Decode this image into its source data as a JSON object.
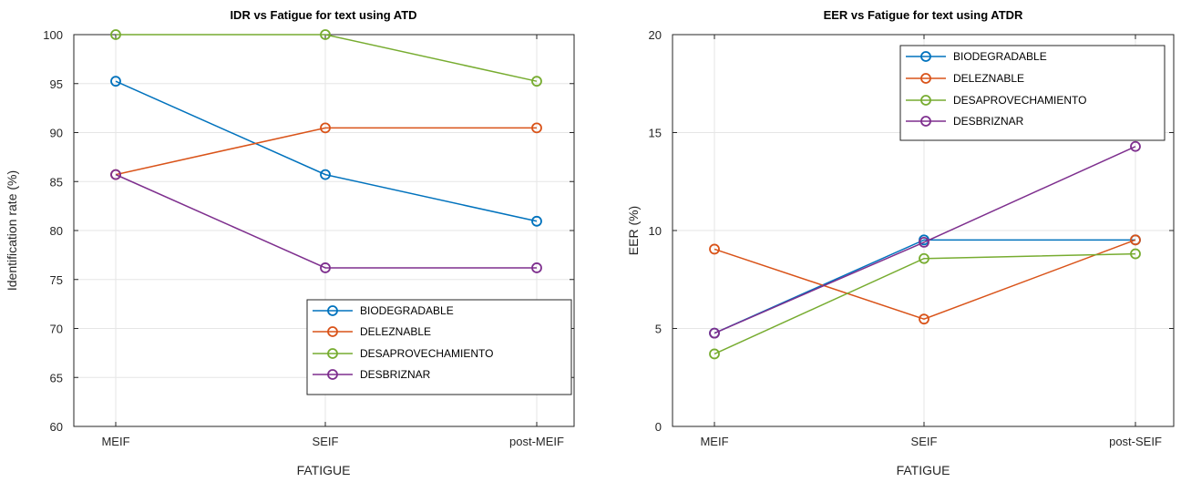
{
  "chart_data": [
    {
      "type": "line",
      "title": "IDR vs Fatigue for text using ATD",
      "xlabel": "FATIGUE",
      "ylabel": "Identification rate (%)",
      "categories": [
        "MEIF",
        "SEIF",
        "post-MEIF"
      ],
      "ylim": [
        60,
        100
      ],
      "yticks": [
        60,
        65,
        70,
        75,
        80,
        85,
        90,
        95,
        100
      ],
      "grid": true,
      "legend_position": "bottom-right",
      "series": [
        {
          "name": "BIODEGRADABLE",
          "color": "#0072BD",
          "values": [
            95.24,
            85.71,
            80.95
          ]
        },
        {
          "name": "DELEZNABLE",
          "color": "#D95319",
          "values": [
            85.71,
            90.48,
            90.48
          ]
        },
        {
          "name": "DESAPROVECHAMIENTO",
          "color": "#77AC30",
          "values": [
            100,
            100,
            95.24
          ]
        },
        {
          "name": "DESBRIZNAR",
          "color": "#7E2F8E",
          "values": [
            85.71,
            76.19,
            76.19
          ]
        }
      ]
    },
    {
      "type": "line",
      "title": "EER vs Fatigue for text using ATDR",
      "xlabel": "FATIGUE",
      "ylabel": "EER (%)",
      "categories": [
        "MEIF",
        "SEIF",
        "post-SEIF"
      ],
      "ylim": [
        0,
        20
      ],
      "yticks": [
        0,
        5,
        10,
        15,
        20
      ],
      "grid": true,
      "legend_position": "top-right",
      "series": [
        {
          "name": "BIODEGRADABLE",
          "color": "#0072BD",
          "values": [
            4.76,
            9.52,
            9.52
          ]
        },
        {
          "name": "DELEZNABLE",
          "color": "#D95319",
          "values": [
            9.05,
            5.48,
            9.52
          ]
        },
        {
          "name": "DESAPROVECHAMIENTO",
          "color": "#77AC30",
          "values": [
            3.7,
            8.57,
            8.81
          ]
        },
        {
          "name": "DESBRIZNAR",
          "color": "#7E2F8E",
          "values": [
            4.76,
            9.4,
            14.29
          ]
        }
      ]
    }
  ]
}
